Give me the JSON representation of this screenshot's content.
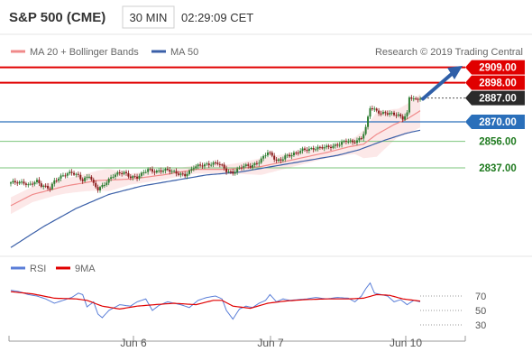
{
  "header": {
    "title": "S&P 500 (CME)",
    "timeframe": "30 MIN",
    "time": "02:29:09 CET"
  },
  "legend": {
    "ma20_label": "MA 20 + Bollinger Bands",
    "ma50_label": "MA 50",
    "copyright": "Research © 2019 Trading Central"
  },
  "colors": {
    "up": "#2e7d32",
    "down": "#8b1c1c",
    "ma20": "#f08a8a",
    "band": "#fbe0e0",
    "ma50": "#3a5fa8",
    "resistance": "#e00000",
    "support_blue": "#2a6fba",
    "support_green": "#7bc47b",
    "arrow": "#2f5fa8",
    "rsi": "#5b7fd8",
    "rsi_ma": "#e00000"
  },
  "chart_data": [
    {
      "type": "candlestick",
      "title": "S&P 500 (CME)",
      "timeframe": "30 MIN",
      "ylim": [
        2775,
        2912
      ],
      "x_labels": [
        "Jun 6",
        "Jun 7",
        "Jun 10"
      ],
      "levels": [
        {
          "value": 2909.0,
          "label": "2909.00",
          "kind": "resistance"
        },
        {
          "value": 2898.0,
          "label": "2898.00",
          "kind": "resistance"
        },
        {
          "value": 2887.0,
          "label": "2887.00",
          "kind": "current"
        },
        {
          "value": 2870.0,
          "label": "2870.00",
          "kind": "support-blue"
        },
        {
          "value": 2856.0,
          "label": "2856.00",
          "kind": "support-green"
        },
        {
          "value": 2837.0,
          "label": "2837.00",
          "kind": "support-green"
        }
      ],
      "anchors": [
        [
          0,
          2826
        ],
        [
          6,
          2827
        ],
        [
          8,
          2825
        ],
        [
          12,
          2827
        ],
        [
          14,
          2824
        ],
        [
          18,
          2823
        ],
        [
          20,
          2828
        ],
        [
          24,
          2831
        ],
        [
          28,
          2834
        ],
        [
          31,
          2832
        ],
        [
          33,
          2828
        ],
        [
          36,
          2831
        ],
        [
          38,
          2825
        ],
        [
          40,
          2822
        ],
        [
          43,
          2826
        ],
        [
          47,
          2831
        ],
        [
          50,
          2833
        ],
        [
          52,
          2834
        ],
        [
          55,
          2831
        ],
        [
          58,
          2830
        ],
        [
          60,
          2832
        ],
        [
          63,
          2836
        ],
        [
          66,
          2835
        ],
        [
          72,
          2835
        ],
        [
          75,
          2834
        ],
        [
          78,
          2833
        ],
        [
          80,
          2832
        ],
        [
          82,
          2834
        ],
        [
          84,
          2837
        ],
        [
          87,
          2839
        ],
        [
          90,
          2840
        ],
        [
          95,
          2840
        ],
        [
          97,
          2838
        ],
        [
          99,
          2835
        ],
        [
          102,
          2834
        ],
        [
          104,
          2836
        ],
        [
          107,
          2838
        ],
        [
          110,
          2838
        ],
        [
          112,
          2840
        ],
        [
          114,
          2842
        ],
        [
          116,
          2845
        ],
        [
          118,
          2848
        ],
        [
          120,
          2845
        ],
        [
          122,
          2842
        ],
        [
          124,
          2843
        ],
        [
          126,
          2846
        ],
        [
          128,
          2846
        ],
        [
          131,
          2847
        ],
        [
          134,
          2850
        ],
        [
          137,
          2851
        ],
        [
          142,
          2851
        ],
        [
          146,
          2852
        ],
        [
          150,
          2854
        ],
        [
          154,
          2856
        ],
        [
          157,
          2855
        ],
        [
          159,
          2857
        ],
        [
          161,
          2859
        ],
        [
          163,
          2866
        ],
        [
          165,
          2880
        ],
        [
          167,
          2878
        ],
        [
          170,
          2876
        ],
        [
          172,
          2877
        ],
        [
          175,
          2876
        ],
        [
          178,
          2874
        ],
        [
          180,
          2872
        ],
        [
          182,
          2876
        ],
        [
          183,
          2888
        ],
        [
          184,
          2888
        ],
        [
          186,
          2886
        ],
        [
          188,
          2887
        ]
      ],
      "ma20": [
        [
          0,
          2810
        ],
        [
          10,
          2818
        ],
        [
          25,
          2824
        ],
        [
          40,
          2828
        ],
        [
          55,
          2829
        ],
        [
          70,
          2832
        ],
        [
          85,
          2836
        ],
        [
          100,
          2836
        ],
        [
          115,
          2838
        ],
        [
          130,
          2843
        ],
        [
          145,
          2848
        ],
        [
          155,
          2852
        ],
        [
          162,
          2854
        ],
        [
          168,
          2861
        ],
        [
          176,
          2868
        ],
        [
          182,
          2872
        ],
        [
          188,
          2878
        ]
      ],
      "ma50": [
        [
          0,
          2780
        ],
        [
          15,
          2795
        ],
        [
          30,
          2808
        ],
        [
          45,
          2818
        ],
        [
          60,
          2824
        ],
        [
          75,
          2828
        ],
        [
          90,
          2832
        ],
        [
          105,
          2834
        ],
        [
          120,
          2838
        ],
        [
          135,
          2842
        ],
        [
          150,
          2846
        ],
        [
          160,
          2850
        ],
        [
          172,
          2857
        ],
        [
          182,
          2862
        ],
        [
          188,
          2864
        ]
      ],
      "band_width": [
        [
          0,
          6
        ],
        [
          20,
          5
        ],
        [
          33,
          6
        ],
        [
          45,
          8
        ],
        [
          55,
          4
        ],
        [
          80,
          3
        ],
        [
          95,
          3
        ],
        [
          105,
          4
        ],
        [
          115,
          6
        ],
        [
          130,
          5
        ],
        [
          145,
          4
        ],
        [
          158,
          6
        ],
        [
          168,
          16
        ],
        [
          178,
          10
        ],
        [
          188,
          12
        ]
      ]
    },
    {
      "type": "line",
      "title": "RSI",
      "series": [
        {
          "name": "RSI"
        },
        {
          "name": "9MA"
        }
      ],
      "ylim": [
        20,
        90
      ],
      "yticks": [
        70,
        50,
        30
      ],
      "rsi": [
        [
          0,
          78
        ],
        [
          4,
          76
        ],
        [
          8,
          72
        ],
        [
          12,
          70
        ],
        [
          16,
          66
        ],
        [
          20,
          60
        ],
        [
          24,
          64
        ],
        [
          28,
          68
        ],
        [
          31,
          74
        ],
        [
          33,
          72
        ],
        [
          35,
          55
        ],
        [
          38,
          62
        ],
        [
          40,
          45
        ],
        [
          42,
          40
        ],
        [
          45,
          50
        ],
        [
          50,
          58
        ],
        [
          55,
          56
        ],
        [
          58,
          62
        ],
        [
          62,
          66
        ],
        [
          65,
          50
        ],
        [
          68,
          57
        ],
        [
          72,
          62
        ],
        [
          78,
          58
        ],
        [
          82,
          54
        ],
        [
          86,
          64
        ],
        [
          90,
          68
        ],
        [
          94,
          70
        ],
        [
          97,
          66
        ],
        [
          99,
          50
        ],
        [
          102,
          38
        ],
        [
          105,
          52
        ],
        [
          108,
          56
        ],
        [
          111,
          54
        ],
        [
          114,
          60
        ],
        [
          117,
          64
        ],
        [
          119,
          72
        ],
        [
          122,
          62
        ],
        [
          125,
          66
        ],
        [
          128,
          64
        ],
        [
          132,
          65
        ],
        [
          136,
          66
        ],
        [
          140,
          68
        ],
        [
          145,
          66
        ],
        [
          150,
          68
        ],
        [
          155,
          67
        ],
        [
          158,
          62
        ],
        [
          161,
          70
        ],
        [
          163,
          80
        ],
        [
          165,
          88
        ],
        [
          167,
          74
        ],
        [
          170,
          72
        ],
        [
          173,
          70
        ],
        [
          176,
          62
        ],
        [
          179,
          65
        ],
        [
          182,
          58
        ],
        [
          185,
          64
        ],
        [
          188,
          62
        ]
      ],
      "rsi_ma": [
        [
          0,
          76
        ],
        [
          10,
          73
        ],
        [
          20,
          67
        ],
        [
          30,
          66
        ],
        [
          35,
          64
        ],
        [
          42,
          56
        ],
        [
          50,
          52
        ],
        [
          58,
          56
        ],
        [
          66,
          58
        ],
        [
          75,
          60
        ],
        [
          85,
          58
        ],
        [
          93,
          64
        ],
        [
          97,
          64
        ],
        [
          102,
          56
        ],
        [
          110,
          53
        ],
        [
          118,
          60
        ],
        [
          126,
          63
        ],
        [
          135,
          65
        ],
        [
          145,
          66
        ],
        [
          155,
          66
        ],
        [
          162,
          67
        ],
        [
          168,
          72
        ],
        [
          174,
          71
        ],
        [
          180,
          66
        ],
        [
          188,
          63
        ]
      ]
    }
  ]
}
